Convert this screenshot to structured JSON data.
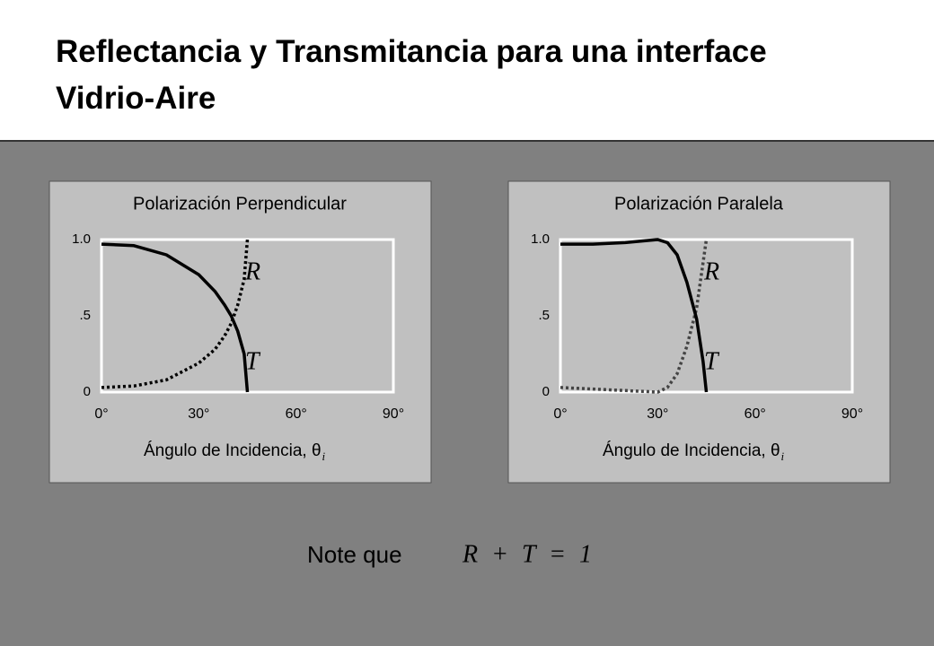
{
  "title": "Reflectancia y Transmitancia para una interface Vidrio-Aire",
  "note": {
    "text": "Note que",
    "equation": "R + T = 1"
  },
  "chart_data": [
    {
      "type": "line",
      "title": "Polarización Perpendicular",
      "x_label": "Ángulo de Incidencia, θ",
      "x_label_subscript": "i",
      "x": [
        0,
        10,
        20,
        30,
        35,
        38,
        40,
        42,
        44,
        45
      ],
      "series": [
        {
          "name": "R",
          "color": "#000000",
          "line_style": "dotted",
          "values": [
            0.03,
            0.04,
            0.08,
            0.19,
            0.28,
            0.37,
            0.45,
            0.57,
            0.74,
            1.0
          ]
        },
        {
          "name": "T",
          "color": "#000000",
          "line_style": "solid",
          "values": [
            0.97,
            0.96,
            0.9,
            0.77,
            0.66,
            0.57,
            0.5,
            0.4,
            0.25,
            0
          ]
        }
      ],
      "xlim": [
        0,
        90
      ],
      "xticks": [
        {
          "value": 0,
          "label": "0°"
        },
        {
          "value": 30,
          "label": "30°"
        },
        {
          "value": 60,
          "label": "60°"
        },
        {
          "value": 90,
          "label": "90°"
        }
      ],
      "ylim": [
        0,
        1
      ],
      "yticks": [
        0,
        {
          "value": 0.5,
          "label": ".5"
        },
        {
          "value": 1,
          "label": "1.0"
        }
      ]
    },
    {
      "type": "line",
      "title": "Polarización Paralela",
      "x_label": "Ángulo de Incidencia, θ",
      "x_label_subscript": "i",
      "x": [
        0,
        10,
        20,
        30,
        33,
        36,
        39,
        42,
        44,
        45
      ],
      "series": [
        {
          "name": "R",
          "color": "#444444",
          "line_style": "dotted",
          "values": [
            0.03,
            0.02,
            0.01,
            0.0,
            0.03,
            0.12,
            0.3,
            0.55,
            0.85,
            1.0
          ]
        },
        {
          "name": "T",
          "color": "#000000",
          "line_style": "solid",
          "values": [
            0.97,
            0.97,
            0.98,
            1.0,
            0.98,
            0.9,
            0.72,
            0.48,
            0.2,
            0
          ]
        }
      ],
      "xlim": [
        0,
        90
      ],
      "xticks": [
        {
          "value": 0,
          "label": "0°"
        },
        {
          "value": 30,
          "label": "30°"
        },
        {
          "value": 60,
          "label": "60°"
        },
        {
          "value": 90,
          "label": "90°"
        }
      ],
      "ylim": [
        0,
        1
      ],
      "yticks": [
        0,
        {
          "value": 0.5,
          "label": ".5"
        },
        {
          "value": 1,
          "label": "1.0"
        }
      ]
    }
  ]
}
